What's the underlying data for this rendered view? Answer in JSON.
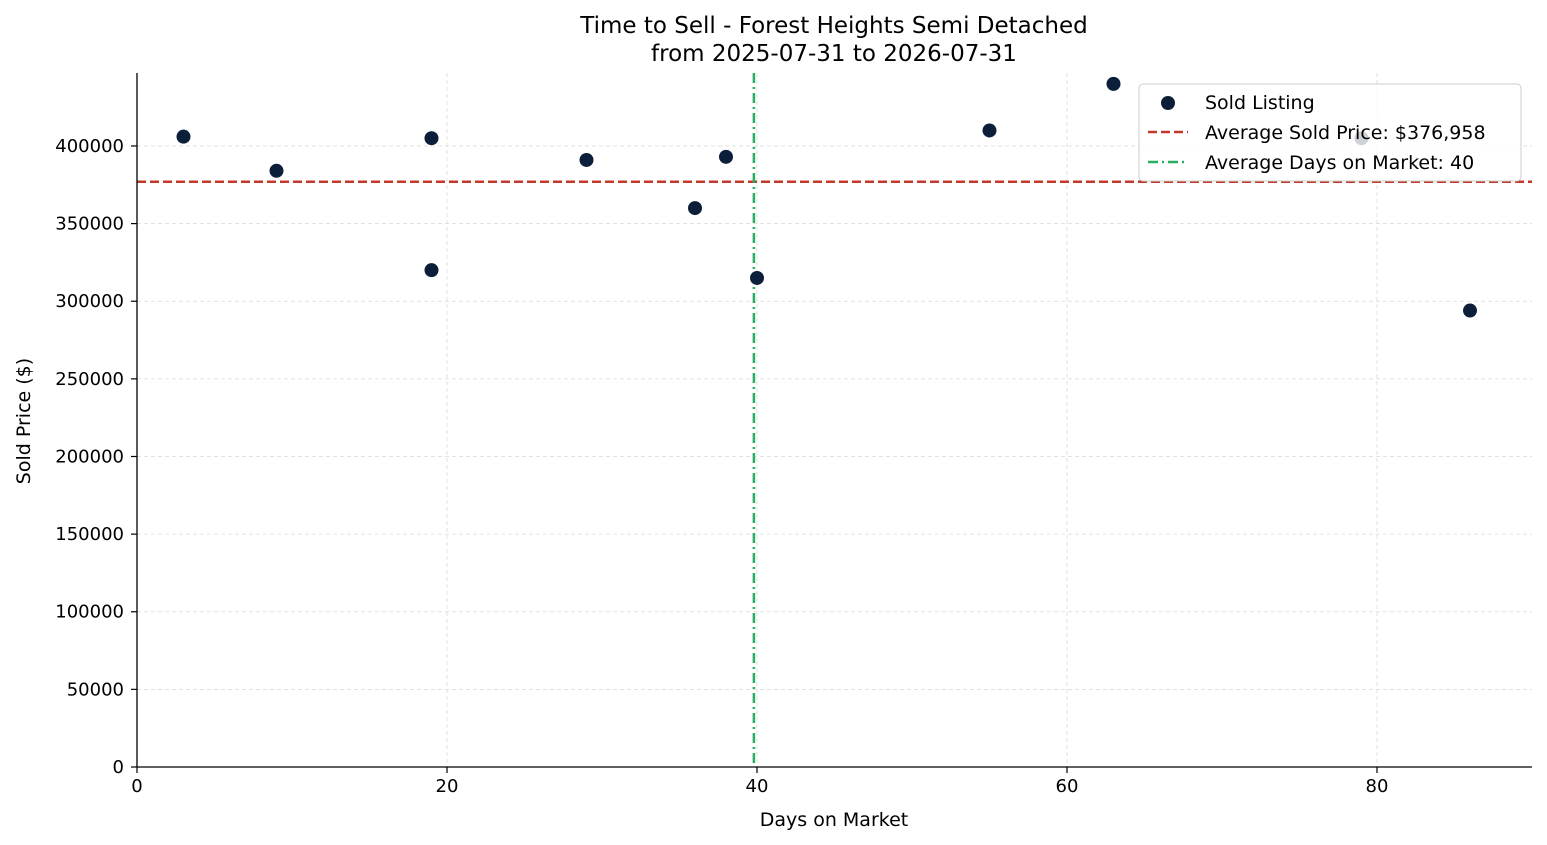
{
  "chart_data": {
    "type": "scatter",
    "title": "Time to Sell - Forest Heights Semi Detached",
    "subtitle": "from 2025-07-31 to 2026-07-31",
    "xlabel": "Days on Market",
    "ylabel": "Sold Price ($)",
    "xlim": [
      0,
      90
    ],
    "ylim": [
      0,
      447000
    ],
    "x_ticks": [
      0,
      20,
      40,
      60,
      80
    ],
    "y_ticks": [
      0,
      50000,
      100000,
      150000,
      200000,
      250000,
      300000,
      350000,
      400000
    ],
    "grid": true,
    "legend_position": "top-right",
    "colors": {
      "points": "#0b1f3a",
      "avg_price_line": "#c0392b",
      "avg_days_line": "#27ae60",
      "grid": "#d9d9d9"
    },
    "series": [
      {
        "name": "Sold Listing",
        "points": [
          {
            "x": 3,
            "y": 406000
          },
          {
            "x": 9,
            "y": 384000
          },
          {
            "x": 19,
            "y": 405000
          },
          {
            "x": 19,
            "y": 320000
          },
          {
            "x": 29,
            "y": 391000
          },
          {
            "x": 36,
            "y": 360000
          },
          {
            "x": 38,
            "y": 393000
          },
          {
            "x": 40,
            "y": 315000
          },
          {
            "x": 55,
            "y": 410000
          },
          {
            "x": 63,
            "y": 440000
          },
          {
            "x": 79,
            "y": 405000
          },
          {
            "x": 86,
            "y": 294000
          }
        ]
      }
    ],
    "reference_lines": [
      {
        "orientation": "horizontal",
        "value": 376958,
        "label": "Average Sold Price: $376,958",
        "style": "dashed"
      },
      {
        "orientation": "vertical",
        "value": 39.8,
        "label": "Average Days on Market: 40",
        "style": "dashdot"
      }
    ]
  }
}
